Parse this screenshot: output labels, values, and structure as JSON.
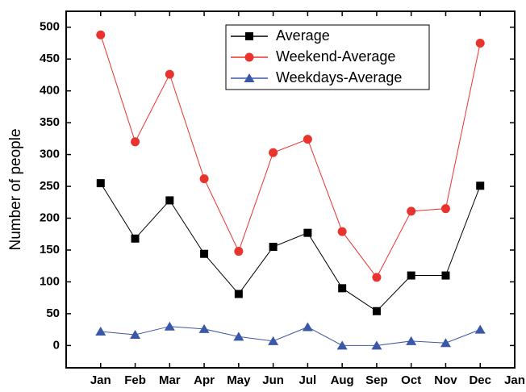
{
  "chart_data": {
    "type": "line",
    "y_label": "Number of people",
    "categories": [
      null,
      "Jan",
      "Feb",
      "Mar",
      "Apr",
      "May",
      "Jun",
      "Jul",
      "Aug",
      "Sep",
      "Oct",
      "Nov",
      "Dec",
      "Jan"
    ],
    "series": [
      {
        "name": "Average",
        "color": "#000000",
        "marker": "square",
        "values": [
          null,
          255,
          168,
          228,
          144,
          81,
          155,
          177,
          90,
          54,
          110,
          110,
          251,
          null
        ]
      },
      {
        "name": "Weekend-Average",
        "color": "#e8332f",
        "marker": "circle",
        "values": [
          null,
          488,
          320,
          426,
          262,
          148,
          303,
          324,
          179,
          107,
          211,
          215,
          475,
          null
        ]
      },
      {
        "name": "Weekdays-Average",
        "color": "#3b57a8",
        "marker": "triangle",
        "values": [
          null,
          22,
          17,
          30,
          26,
          14,
          7,
          29,
          0,
          0,
          7,
          4,
          25,
          null
        ]
      }
    ],
    "ylim": [
      -35,
      525
    ],
    "yticks": [
      0,
      50,
      100,
      150,
      200,
      250,
      300,
      350,
      400,
      450,
      500
    ],
    "grid": false,
    "legend": "top"
  }
}
